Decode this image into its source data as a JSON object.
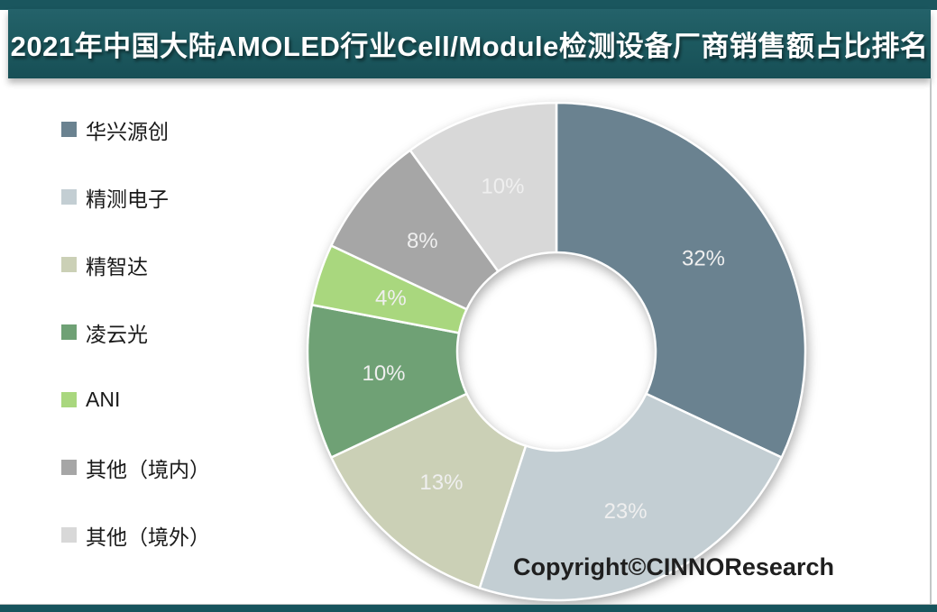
{
  "title": "2021年中国大陆AMOLED行业Cell/Module检测设备厂商销售额占比排名",
  "copyright": "Copyright©CINNOResearch",
  "colors": {
    "title_bar": "#1d5a60",
    "edge_strip": "#17545d",
    "slice_label_text": "#efefef",
    "legend_text": "#1a1a1a"
  },
  "chart_data": {
    "type": "pie",
    "subtype": "donut",
    "title": "2021年中国大陆AMOLED行业Cell/Module检测设备厂商销售额占比排名",
    "categories": [
      "华兴源创",
      "精测电子",
      "精智达",
      "凌云光",
      "ANI",
      "其他（境内）",
      "其他（境外）"
    ],
    "values": [
      32,
      23,
      13,
      10,
      4,
      8,
      10
    ],
    "data_labels": [
      "32%",
      "23%",
      "13%",
      "10%",
      "4%",
      "8%",
      "10%"
    ],
    "colors": [
      "#6a8290",
      "#c3ced3",
      "#cbd0b6",
      "#6fa175",
      "#a9d77e",
      "#a6a6a6",
      "#d8d8d8"
    ],
    "unit": "%",
    "legend_position": "left",
    "start_angle_deg": 0,
    "direction": "clockwise",
    "donut_hole_ratio": 0.4,
    "slice_border_color": "#ffffff"
  }
}
